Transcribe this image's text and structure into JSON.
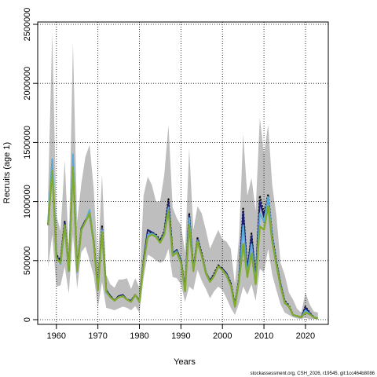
{
  "chart_data": {
    "type": "line",
    "title": "",
    "xlabel": "Years",
    "ylabel": "Recruits (age 1)",
    "xlim": [
      1955.5,
      2025.5
    ],
    "ylim": [
      -40000,
      2520000
    ],
    "grid": true,
    "x_ticks": [
      1960,
      1970,
      1980,
      1990,
      2000,
      2010,
      2020
    ],
    "y_ticks": [
      0,
      500000,
      1000000,
      1500000,
      2000000,
      2500000
    ],
    "x_tick_labels": [
      "1960",
      "1970",
      "1980",
      "1990",
      "2000",
      "2010",
      "2020"
    ],
    "y_tick_labels": [
      "0",
      "500000",
      "1000000",
      "1500000",
      "2000000",
      "2500000"
    ],
    "x": [
      1958,
      1959,
      1960,
      1961,
      1962,
      1963,
      1964,
      1965,
      1966,
      1967,
      1968,
      1969,
      1970,
      1971,
      1972,
      1973,
      1974,
      1975,
      1976,
      1977,
      1978,
      1979,
      1980,
      1981,
      1982,
      1983,
      1984,
      1985,
      1986,
      1987,
      1988,
      1989,
      1990,
      1991,
      1992,
      1993,
      1994,
      1995,
      1996,
      1997,
      1998,
      1999,
      2000,
      2001,
      2002,
      2003,
      2004,
      2005,
      2006,
      2007,
      2008,
      2009,
      2010,
      2011,
      2012,
      2013,
      2014,
      2015,
      2016,
      2017,
      2018,
      2019,
      2020,
      2021,
      2022,
      2023
    ],
    "band": {
      "name": "",
      "color": "#bebebe",
      "lower": [
        440000,
        720000,
        280000,
        290000,
        450000,
        220000,
        720000,
        260000,
        570000,
        620000,
        500000,
        370000,
        100000,
        320000,
        100000,
        90000,
        80000,
        95000,
        110000,
        100000,
        80000,
        115000,
        60000,
        350000,
        550000,
        530000,
        500000,
        480000,
        500000,
        600000,
        360000,
        350000,
        300000,
        150000,
        280000,
        250000,
        420000,
        330000,
        260000,
        180000,
        240000,
        280000,
        250000,
        180000,
        100000,
        40000,
        140000,
        280000,
        210000,
        300000,
        160000,
        430000,
        400000,
        600000,
        380000,
        250000,
        130000,
        60000,
        40000,
        20000,
        10000,
        5000,
        15000,
        5000,
        5000,
        5000
      ],
      "upper": [
        1060000,
        2430000,
        880000,
        750000,
        1350000,
        600000,
        2350000,
        830000,
        1150000,
        1380000,
        1480000,
        1100000,
        480000,
        1230000,
        380000,
        300000,
        270000,
        340000,
        340000,
        350000,
        260000,
        350000,
        270000,
        1050000,
        1210000,
        1140000,
        1000000,
        1000000,
        1230000,
        1650000,
        950000,
        860000,
        800000,
        570000,
        1450000,
        760000,
        960000,
        900000,
        760000,
        600000,
        680000,
        760000,
        680000,
        660000,
        600000,
        300000,
        700000,
        1570000,
        1050000,
        1200000,
        920000,
        1710000,
        1400000,
        1650000,
        1140000,
        880000,
        480000,
        380000,
        230000,
        170000,
        90000,
        60000,
        230000,
        130000,
        70000,
        60000
      ]
    },
    "series": [
      {
        "name": "",
        "color": "#000000",
        "dash": "2,2",
        "width": 2.2,
        "values": [
          810000,
          1300000,
          550000,
          500000,
          830000,
          420000,
          1350000,
          430000,
          770000,
          840000,
          900000,
          650000,
          260000,
          790000,
          250000,
          200000,
          160000,
          200000,
          200000,
          170000,
          160000,
          210000,
          160000,
          500000,
          730000,
          740000,
          720000,
          670000,
          750000,
          1020000,
          560000,
          590000,
          500000,
          260000,
          900000,
          420000,
          690000,
          560000,
          400000,
          330000,
          390000,
          460000,
          430000,
          390000,
          310000,
          120000,
          350000,
          940000,
          410000,
          730000,
          340000,
          1050000,
          890000,
          1060000,
          710000,
          490000,
          300000,
          160000,
          120000,
          40000,
          30000,
          20000,
          110000,
          60000,
          20000,
          10000
        ]
      },
      {
        "name": "",
        "color": "#1a1f73",
        "dash": "",
        "width": 2.0,
        "values": [
          800000,
          1280000,
          540000,
          490000,
          820000,
          410000,
          1330000,
          420000,
          770000,
          840000,
          900000,
          660000,
          260000,
          770000,
          250000,
          200000,
          160000,
          200000,
          210000,
          170000,
          160000,
          210000,
          160000,
          500000,
          760000,
          740000,
          710000,
          660000,
          740000,
          990000,
          560000,
          590000,
          500000,
          250000,
          880000,
          420000,
          680000,
          550000,
          400000,
          330000,
          380000,
          450000,
          430000,
          390000,
          300000,
          120000,
          340000,
          910000,
          400000,
          710000,
          330000,
          1000000,
          870000,
          1030000,
          700000,
          480000,
          300000,
          150000,
          110000,
          40000,
          30000,
          20000,
          100000,
          55000,
          20000,
          10000
        ]
      },
      {
        "name": "",
        "color": "#5aa9d8",
        "dash": "",
        "width": 2.0,
        "values": [
          830000,
          1360000,
          530000,
          470000,
          780000,
          410000,
          1400000,
          400000,
          760000,
          830000,
          930000,
          650000,
          250000,
          760000,
          230000,
          190000,
          160000,
          190000,
          200000,
          170000,
          150000,
          210000,
          150000,
          480000,
          720000,
          730000,
          710000,
          650000,
          730000,
          950000,
          550000,
          580000,
          490000,
          240000,
          860000,
          410000,
          670000,
          540000,
          400000,
          320000,
          370000,
          450000,
          420000,
          380000,
          290000,
          110000,
          330000,
          800000,
          380000,
          640000,
          320000,
          900000,
          830000,
          1040000,
          690000,
          470000,
          290000,
          150000,
          110000,
          40000,
          30000,
          20000,
          80000,
          50000,
          20000,
          10000
        ]
      },
      {
        "name": "",
        "color": "#7faa2a",
        "dash": "",
        "width": 2.2,
        "values": [
          800000,
          1260000,
          520000,
          480000,
          800000,
          410000,
          1290000,
          410000,
          760000,
          830000,
          900000,
          640000,
          250000,
          740000,
          240000,
          190000,
          160000,
          190000,
          200000,
          170000,
          150000,
          210000,
          150000,
          480000,
          700000,
          720000,
          700000,
          650000,
          720000,
          920000,
          540000,
          570000,
          480000,
          240000,
          800000,
          410000,
          660000,
          540000,
          390000,
          320000,
          370000,
          450000,
          420000,
          370000,
          290000,
          110000,
          330000,
          640000,
          360000,
          560000,
          300000,
          790000,
          760000,
          960000,
          660000,
          460000,
          280000,
          140000,
          110000,
          40000,
          30000,
          20000,
          60000,
          45000,
          20000,
          10000
        ]
      }
    ]
  },
  "footer_text": "stockassessment.org, CSH_2026, r19545, git:1cc464b8086"
}
